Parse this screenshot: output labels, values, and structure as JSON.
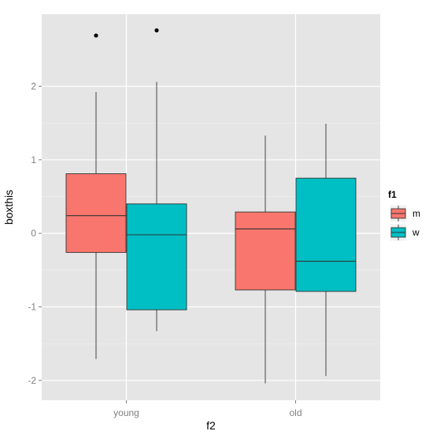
{
  "chart_data": {
    "type": "boxplot",
    "xlabel": "f2",
    "ylabel": "boxthis",
    "categories": [
      "young",
      "old"
    ],
    "ylim": [
      -2.27,
      2.98
    ],
    "yticks": [
      -2,
      -1,
      0,
      1,
      2
    ],
    "grid": true,
    "legend": {
      "title": "f1",
      "placement": "right",
      "entries": [
        {
          "name": "m",
          "color": "#f8766d"
        },
        {
          "name": "w",
          "color": "#00bfc4"
        }
      ]
    },
    "series": [
      {
        "name": "m",
        "color": "#f8766d",
        "boxes": [
          {
            "category": "young",
            "lower_whisker": -1.71,
            "q1": -0.26,
            "median": 0.24,
            "q3": 0.81,
            "upper_whisker": 1.92,
            "outliers": [
              2.69
            ]
          },
          {
            "category": "old",
            "lower_whisker": -2.04,
            "q1": -0.77,
            "median": 0.06,
            "q3": 0.29,
            "upper_whisker": 1.33,
            "outliers": []
          }
        ]
      },
      {
        "name": "w",
        "color": "#00bfc4",
        "boxes": [
          {
            "category": "young",
            "lower_whisker": -1.33,
            "q1": -1.04,
            "median": -0.02,
            "q3": 0.4,
            "upper_whisker": 2.06,
            "outliers": [
              2.76
            ]
          },
          {
            "category": "old",
            "lower_whisker": -1.94,
            "q1": -0.79,
            "median": -0.38,
            "q3": 0.75,
            "upper_whisker": 1.49,
            "outliers": []
          }
        ]
      }
    ],
    "colors": {
      "panel": "#e5e5e5",
      "grid_major": "#ffffff",
      "grid_minor": "#f2f2f2"
    }
  }
}
